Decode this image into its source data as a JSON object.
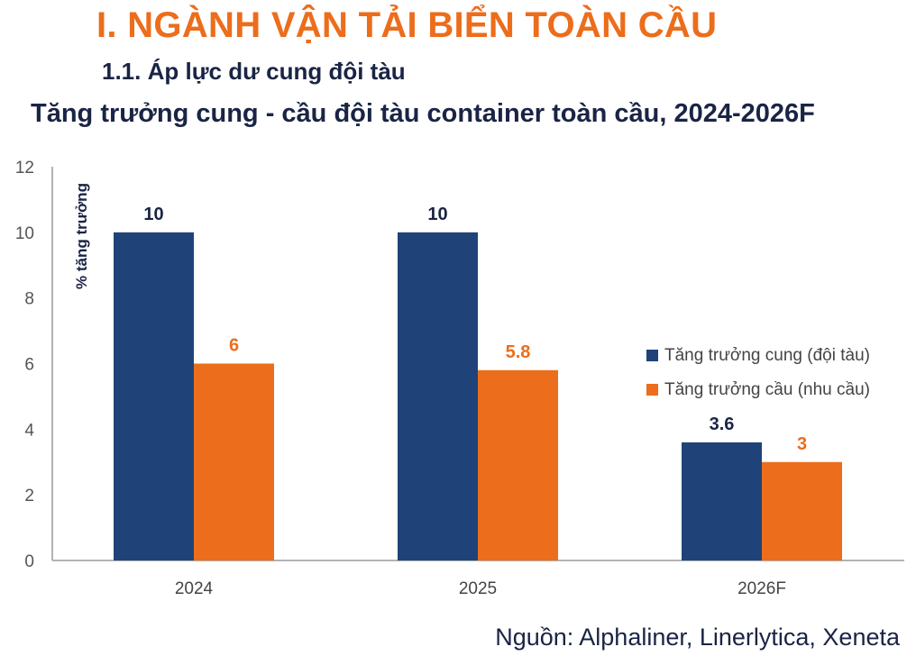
{
  "header": {
    "section_title": "I. NGÀNH VẬN TẢI BIỂN TOÀN CẦU",
    "sub_title": "1.1. Áp lực dư cung đội tàu"
  },
  "source": "Nguồn: Alphaliner, Linerlytica, Xeneta",
  "colors": {
    "supply": "#1f4378",
    "demand": "#ec6d1b",
    "title": "#ec6d1b",
    "text": "#1a2444"
  },
  "chart_data": {
    "type": "bar",
    "title": "Tăng trưởng cung - cầu đội tàu container toàn cầu, 2024-2026F",
    "ylabel": "% tăng trưởng",
    "xlabel": "",
    "categories": [
      "2024",
      "2025",
      "2026F"
    ],
    "series": [
      {
        "name": "Tăng trưởng cung (đội tàu)",
        "values": [
          10,
          10,
          3.6
        ],
        "labels": [
          "10",
          "10",
          "3.6"
        ],
        "color": "#1f4378"
      },
      {
        "name": "Tăng trưởng cầu (nhu cầu)",
        "values": [
          6,
          5.8,
          3
        ],
        "labels": [
          "6",
          "5.8",
          "3"
        ],
        "color": "#ec6d1b"
      }
    ],
    "ylim": [
      0,
      12
    ],
    "yticks": [
      "0",
      "2",
      "4",
      "6",
      "8",
      "10",
      "12"
    ],
    "grid": false,
    "legend": "right"
  }
}
